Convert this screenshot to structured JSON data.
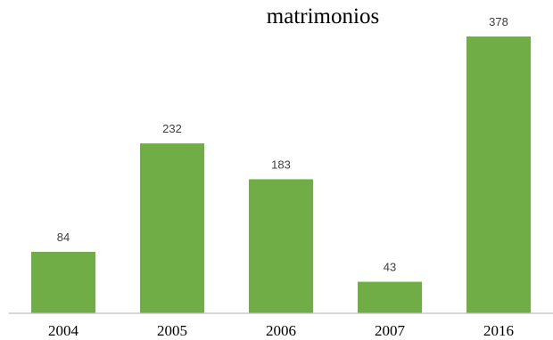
{
  "chart_data": {
    "type": "bar",
    "title": "matrimonios",
    "xlabel": "",
    "ylabel": "",
    "categories": [
      "2004",
      "2005",
      "2006",
      "2007",
      "2016"
    ],
    "values": [
      84,
      232,
      183,
      43,
      378
    ],
    "data_labels": [
      "84",
      "232",
      "183",
      "43",
      "378"
    ],
    "ylim": [
      0,
      400
    ],
    "grid": false,
    "legend": "none",
    "bar_color": "#70AD47",
    "axis_color": "#BFBFBF"
  }
}
